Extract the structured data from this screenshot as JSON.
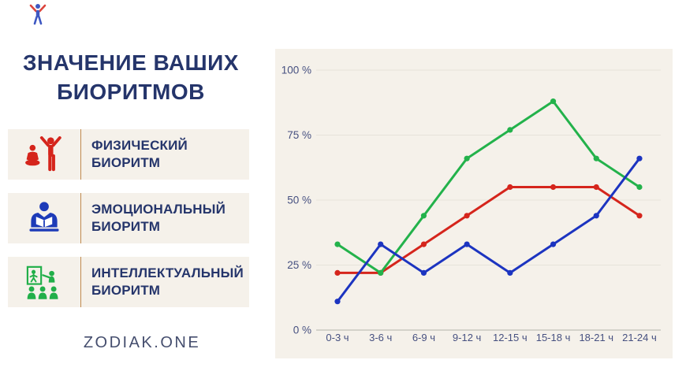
{
  "header": {
    "title": "ЗНАЧЕНИЕ ВАШИХ БИОРИТМОВ"
  },
  "logo": {
    "icon": "person-arms-raised-icon",
    "body_color": "#1d3bb8",
    "arms_color": "#d5251c"
  },
  "legend": {
    "items": [
      {
        "id": "physical",
        "label": "ФИЗИЧЕСКИЙ БИОРИТМ",
        "icon": "exercise-figures-icon",
        "color": "#d5251c"
      },
      {
        "id": "emotional",
        "label": "ЭМОЦИОНАЛЬНЫЙ БИОРИТМ",
        "icon": "person-reading-icon",
        "color": "#1d3bb8"
      },
      {
        "id": "intellectual",
        "label": "ИНТЕЛЛЕКТУАЛЬНЫЙ БИОРИТМ",
        "icon": "presentation-group-icon",
        "color": "#23b24b"
      }
    ]
  },
  "footer": {
    "brand": "ZODIAK.ONE"
  },
  "colors": {
    "title_text": "#25356b",
    "tick_text": "#465080",
    "panel_background": "#f5f1ea",
    "card_divider": "#c08a4e",
    "gridline": "#e6e3da",
    "axis_line": "#c9c7bf",
    "brand_text": "#454e6e"
  },
  "chart_data": {
    "type": "line",
    "title": "",
    "xlabel": "",
    "ylabel": "",
    "categories": [
      "0-3 ч",
      "3-6 ч",
      "6-9 ч",
      "9-12 ч",
      "12-15 ч",
      "15-18 ч",
      "18-21 ч",
      "21-24 ч"
    ],
    "series": [
      {
        "name": "ФИЗИЧЕСКИЙ БИОРИТМ",
        "color": "#d5251c",
        "values": [
          22,
          22,
          33,
          44,
          55,
          55,
          55,
          44
        ]
      },
      {
        "name": "ИНТЕЛЛЕКТУАЛЬНЫЙ БИОРИТМ",
        "color": "#23b24b",
        "values": [
          33,
          22,
          44,
          66,
          77,
          88,
          66,
          55
        ]
      },
      {
        "name": "ЭМОЦИОНАЛЬНЫЙ БИОРИТМ",
        "color": "#1c34c0",
        "values": [
          11,
          33,
          22,
          33,
          22,
          33,
          44,
          66
        ]
      }
    ],
    "ylim": [
      0,
      100
    ],
    "ytick_values": [
      0,
      25,
      50,
      75,
      100
    ],
    "ytick_labels": [
      "0 %",
      "25 %",
      "50 %",
      "75 %",
      "100 %"
    ],
    "grid": true,
    "markers": true,
    "legend_position": "left-cards"
  }
}
